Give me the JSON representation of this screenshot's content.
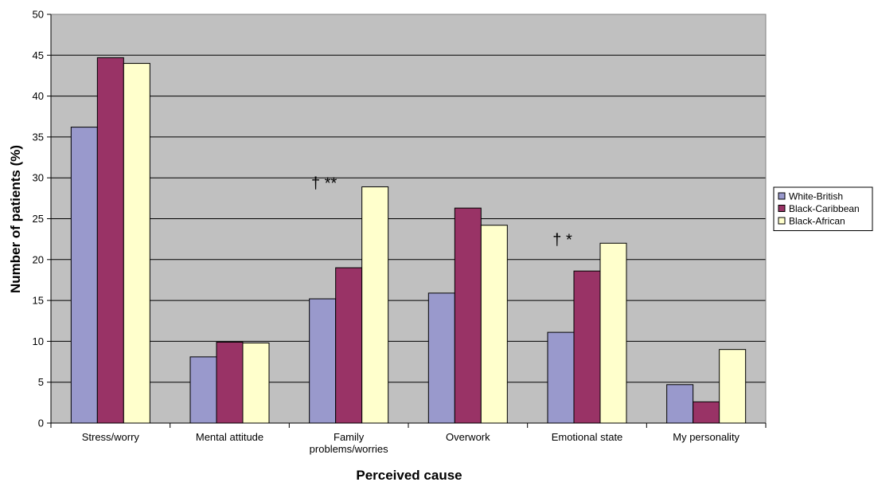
{
  "chart_data": {
    "type": "bar",
    "xlabel": "Perceived cause",
    "ylabel": "Number of patients (%)",
    "ylim": [
      0,
      50
    ],
    "yticks": [
      0,
      5,
      10,
      15,
      20,
      25,
      30,
      35,
      40,
      45,
      50
    ],
    "grid": true,
    "legend_position": "right",
    "categories": [
      [
        "Stress/worry"
      ],
      [
        "Mental attitude"
      ],
      [
        "Family",
        "problems/worries"
      ],
      [
        "Overwork"
      ],
      [
        "Emotional state"
      ],
      [
        "My personality"
      ]
    ],
    "series": [
      {
        "name": "White-British",
        "color": "#9999cc",
        "values": [
          36.2,
          8.1,
          15.2,
          15.9,
          11.1,
          4.7
        ]
      },
      {
        "name": "Black-Caribbean",
        "color": "#993366",
        "values": [
          44.7,
          9.9,
          19.0,
          26.3,
          18.6,
          2.6
        ]
      },
      {
        "name": "Black-African",
        "color": "#ffffcc",
        "values": [
          44.0,
          9.8,
          28.9,
          24.2,
          22.0,
          9.0
        ]
      }
    ],
    "annotations": [
      {
        "text": "† **",
        "category_index": 2
      },
      {
        "text": "† *",
        "category_index": 4
      }
    ]
  },
  "colors": {
    "plot_background": "#c0c0c0",
    "gridline": "#000000"
  }
}
